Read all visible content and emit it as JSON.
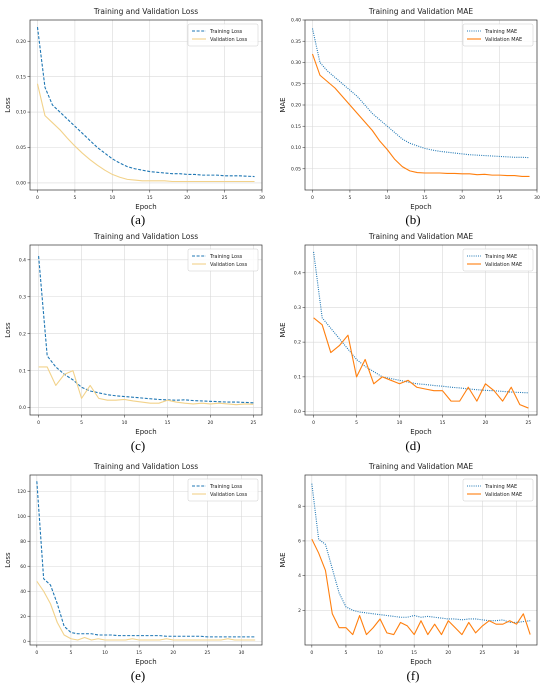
{
  "colors": {
    "training": "#1f77b4",
    "validation_loss": "#f2d28a",
    "validation_mae": "#ff7f0e",
    "grid": "#d9d9d9"
  },
  "chart_data": [
    {
      "type": "line",
      "title": "Training and Validation Loss",
      "xlabel": "Epoch",
      "ylabel": "Loss",
      "xlim": [
        -1,
        30
      ],
      "ylim": [
        -0.01,
        0.23
      ],
      "xticks": [
        0,
        5,
        10,
        15,
        20,
        25,
        30
      ],
      "yticks": [
        0.0,
        0.05,
        0.1,
        0.15,
        0.2
      ],
      "xticklabels": [
        "0",
        "5",
        "10",
        "15",
        "20",
        "25",
        "30"
      ],
      "yticklabels": [
        "0.00",
        "0.05",
        "0.10",
        "0.15",
        "0.20"
      ],
      "legend_position": "top-right",
      "grid": true,
      "series": [
        {
          "name": "Training Loss",
          "style": "dashed",
          "color": "#1f77b4",
          "x": [
            0,
            1,
            2,
            3,
            4,
            5,
            6,
            7,
            8,
            9,
            10,
            11,
            12,
            13,
            14,
            15,
            16,
            17,
            18,
            19,
            20,
            21,
            22,
            23,
            24,
            25,
            26,
            27,
            28,
            29
          ],
          "y": [
            0.22,
            0.135,
            0.11,
            0.1,
            0.09,
            0.08,
            0.07,
            0.06,
            0.05,
            0.042,
            0.034,
            0.028,
            0.023,
            0.02,
            0.018,
            0.016,
            0.015,
            0.014,
            0.013,
            0.013,
            0.012,
            0.012,
            0.011,
            0.011,
            0.011,
            0.01,
            0.01,
            0.01,
            0.0095,
            0.009
          ]
        },
        {
          "name": "Validation Loss",
          "style": "solid",
          "color": "#f2d28a",
          "x": [
            0,
            1,
            2,
            3,
            4,
            5,
            6,
            7,
            8,
            9,
            10,
            11,
            12,
            13,
            14,
            15,
            16,
            17,
            18,
            19,
            20,
            21,
            22,
            23,
            24,
            25,
            26,
            27,
            28,
            29
          ],
          "y": [
            0.14,
            0.095,
            0.085,
            0.075,
            0.063,
            0.052,
            0.042,
            0.033,
            0.025,
            0.018,
            0.012,
            0.008,
            0.005,
            0.004,
            0.003,
            0.003,
            0.003,
            0.003,
            0.002,
            0.002,
            0.002,
            0.002,
            0.002,
            0.002,
            0.002,
            0.002,
            0.002,
            0.002,
            0.002,
            0.002
          ]
        }
      ]
    },
    {
      "type": "line",
      "title": "Training and Validation MAE",
      "xlabel": "Epoch",
      "ylabel": "MAE",
      "xlim": [
        -1,
        30
      ],
      "ylim": [
        0.0,
        0.4
      ],
      "xticks": [
        0,
        5,
        10,
        15,
        20,
        25,
        30
      ],
      "yticks": [
        0.05,
        0.1,
        0.15,
        0.2,
        0.25,
        0.3,
        0.35,
        0.4
      ],
      "xticklabels": [
        "0",
        "5",
        "10",
        "15",
        "20",
        "25",
        "30"
      ],
      "yticklabels": [
        "0.05",
        "0.10",
        "0.15",
        "0.20",
        "0.25",
        "0.30",
        "0.35",
        "0.40"
      ],
      "legend_position": "top-right",
      "grid": true,
      "series": [
        {
          "name": "Training MAE",
          "style": "dotted",
          "color": "#1f77b4",
          "x": [
            0,
            1,
            2,
            3,
            4,
            5,
            6,
            7,
            8,
            9,
            10,
            11,
            12,
            13,
            14,
            15,
            16,
            17,
            18,
            19,
            20,
            21,
            22,
            23,
            24,
            25,
            26,
            27,
            28,
            29
          ],
          "y": [
            0.38,
            0.3,
            0.28,
            0.265,
            0.25,
            0.235,
            0.22,
            0.2,
            0.18,
            0.165,
            0.15,
            0.135,
            0.12,
            0.11,
            0.104,
            0.098,
            0.094,
            0.091,
            0.089,
            0.087,
            0.085,
            0.083,
            0.082,
            0.081,
            0.08,
            0.079,
            0.078,
            0.077,
            0.077,
            0.076
          ]
        },
        {
          "name": "Validation MAE",
          "style": "solid",
          "color": "#ff7f0e",
          "x": [
            0,
            1,
            2,
            3,
            4,
            5,
            6,
            7,
            8,
            9,
            10,
            11,
            12,
            13,
            14,
            15,
            16,
            17,
            18,
            19,
            20,
            21,
            22,
            23,
            24,
            25,
            26,
            27,
            28,
            29
          ],
          "y": [
            0.32,
            0.27,
            0.255,
            0.24,
            0.22,
            0.2,
            0.18,
            0.16,
            0.14,
            0.115,
            0.095,
            0.072,
            0.055,
            0.045,
            0.041,
            0.04,
            0.04,
            0.04,
            0.039,
            0.039,
            0.038,
            0.038,
            0.036,
            0.037,
            0.035,
            0.035,
            0.034,
            0.034,
            0.032,
            0.032
          ]
        }
      ]
    },
    {
      "type": "line",
      "title": "Training and Validation Loss",
      "xlabel": "Epoch",
      "ylabel": "Loss",
      "xlim": [
        -1,
        26
      ],
      "ylim": [
        -0.02,
        0.44
      ],
      "xticks": [
        0,
        5,
        10,
        15,
        20,
        25
      ],
      "yticks": [
        0.0,
        0.1,
        0.2,
        0.3,
        0.4
      ],
      "xticklabels": [
        "0",
        "5",
        "10",
        "15",
        "20",
        "25"
      ],
      "yticklabels": [
        "0.0",
        "0.1",
        "0.2",
        "0.3",
        "0.4"
      ],
      "legend_position": "top-right",
      "grid": true,
      "series": [
        {
          "name": "Training Loss",
          "style": "dashed",
          "color": "#1f77b4",
          "x": [
            0,
            1,
            2,
            3,
            4,
            5,
            6,
            7,
            8,
            9,
            10,
            11,
            12,
            13,
            14,
            15,
            16,
            17,
            18,
            19,
            20,
            21,
            22,
            23,
            24,
            25
          ],
          "y": [
            0.41,
            0.14,
            0.11,
            0.09,
            0.075,
            0.055,
            0.045,
            0.04,
            0.035,
            0.032,
            0.03,
            0.028,
            0.026,
            0.024,
            0.022,
            0.021,
            0.02,
            0.021,
            0.019,
            0.018,
            0.017,
            0.016,
            0.015,
            0.015,
            0.014,
            0.013
          ]
        },
        {
          "name": "Validation Loss",
          "style": "solid",
          "color": "#f2d28a",
          "x": [
            0,
            1,
            2,
            3,
            4,
            5,
            6,
            7,
            8,
            9,
            10,
            11,
            12,
            13,
            14,
            15,
            16,
            17,
            18,
            19,
            20,
            21,
            22,
            23,
            24,
            25
          ],
          "y": [
            0.11,
            0.11,
            0.06,
            0.09,
            0.1,
            0.025,
            0.06,
            0.025,
            0.02,
            0.02,
            0.022,
            0.018,
            0.015,
            0.012,
            0.012,
            0.02,
            0.015,
            0.012,
            0.01,
            0.012,
            0.01,
            0.012,
            0.01,
            0.008,
            0.01,
            0.009
          ]
        }
      ]
    },
    {
      "type": "line",
      "title": "Training and Validation MAE",
      "xlabel": "Epoch",
      "ylabel": "MAE",
      "xlim": [
        -1,
        26
      ],
      "ylim": [
        -0.01,
        0.48
      ],
      "xticks": [
        0,
        5,
        10,
        15,
        20,
        25
      ],
      "yticks": [
        0.0,
        0.1,
        0.2,
        0.3,
        0.4
      ],
      "xticklabels": [
        "0",
        "5",
        "10",
        "15",
        "20",
        "25"
      ],
      "yticklabels": [
        "0.0",
        "0.1",
        "0.2",
        "0.3",
        "0.4"
      ],
      "legend_position": "top-right",
      "grid": true,
      "series": [
        {
          "name": "Training MAE",
          "style": "dotted",
          "color": "#1f77b4",
          "x": [
            0,
            1,
            2,
            3,
            4,
            5,
            6,
            7,
            8,
            9,
            10,
            11,
            12,
            13,
            14,
            15,
            16,
            17,
            18,
            19,
            20,
            21,
            22,
            23,
            24,
            25
          ],
          "y": [
            0.46,
            0.27,
            0.24,
            0.21,
            0.18,
            0.15,
            0.13,
            0.115,
            0.1,
            0.095,
            0.09,
            0.085,
            0.08,
            0.078,
            0.075,
            0.073,
            0.07,
            0.068,
            0.065,
            0.063,
            0.061,
            0.06,
            0.058,
            0.056,
            0.055,
            0.054
          ]
        },
        {
          "name": "Validation MAE",
          "style": "solid",
          "color": "#ff7f0e",
          "x": [
            0,
            1,
            2,
            3,
            4,
            5,
            6,
            7,
            8,
            9,
            10,
            11,
            12,
            13,
            14,
            15,
            16,
            17,
            18,
            19,
            20,
            21,
            22,
            23,
            24,
            25
          ],
          "y": [
            0.27,
            0.25,
            0.17,
            0.19,
            0.22,
            0.1,
            0.15,
            0.08,
            0.1,
            0.09,
            0.08,
            0.09,
            0.07,
            0.065,
            0.06,
            0.06,
            0.03,
            0.03,
            0.07,
            0.03,
            0.08,
            0.06,
            0.03,
            0.07,
            0.02,
            0.01
          ]
        }
      ]
    },
    {
      "type": "line",
      "title": "Training and Validation Loss",
      "xlabel": "Epoch",
      "ylabel": "Loss",
      "xlim": [
        -1,
        33
      ],
      "ylim": [
        -3,
        133
      ],
      "xticks": [
        0,
        5,
        10,
        15,
        20,
        25,
        30
      ],
      "yticks": [
        0,
        20,
        40,
        60,
        80,
        100,
        120
      ],
      "xticklabels": [
        "0",
        "5",
        "10",
        "15",
        "20",
        "25",
        "30"
      ],
      "yticklabels": [
        "0",
        "20",
        "40",
        "60",
        "80",
        "100",
        "120"
      ],
      "legend_position": "top-right",
      "grid": true,
      "series": [
        {
          "name": "Training Loss",
          "style": "dashed",
          "color": "#1f77b4",
          "x": [
            0,
            1,
            2,
            3,
            4,
            5,
            6,
            7,
            8,
            9,
            10,
            11,
            12,
            13,
            14,
            15,
            16,
            17,
            18,
            19,
            20,
            21,
            22,
            23,
            24,
            25,
            26,
            27,
            28,
            29,
            30,
            31,
            32
          ],
          "y": [
            128,
            50,
            45,
            30,
            12,
            7,
            6,
            6,
            6,
            5,
            5,
            5,
            4.5,
            4.5,
            4.5,
            4.5,
            4.5,
            4.5,
            4.5,
            4,
            4,
            4,
            4,
            4,
            4,
            3.5,
            3.5,
            3.5,
            3.5,
            3.5,
            3.5,
            3.5,
            3.5
          ]
        },
        {
          "name": "Validation Loss",
          "style": "solid",
          "color": "#f2d28a",
          "x": [
            0,
            1,
            2,
            3,
            4,
            5,
            6,
            7,
            8,
            9,
            10,
            11,
            12,
            13,
            14,
            15,
            16,
            17,
            18,
            19,
            20,
            21,
            22,
            23,
            24,
            25,
            26,
            27,
            28,
            29,
            30,
            31,
            32
          ],
          "y": [
            48,
            40,
            30,
            15,
            5,
            2,
            1,
            3,
            1,
            2,
            1,
            1,
            1,
            1,
            2,
            1,
            1,
            1,
            1,
            2,
            1,
            1,
            1,
            1,
            1,
            1,
            1,
            1,
            2,
            1,
            1,
            1,
            1
          ]
        }
      ]
    },
    {
      "type": "line",
      "title": "Training and Validation MAE",
      "xlabel": "Epoch",
      "ylabel": "MAE",
      "xlim": [
        -1,
        33
      ],
      "ylim": [
        0.0,
        9.8
      ],
      "xticks": [
        0,
        5,
        10,
        15,
        20,
        25,
        30
      ],
      "yticks": [
        2,
        4,
        6,
        8
      ],
      "xticklabels": [
        "0",
        "5",
        "10",
        "15",
        "20",
        "25",
        "30"
      ],
      "yticklabels": [
        "2",
        "4",
        "6",
        "8"
      ],
      "legend_position": "top-right",
      "grid": true,
      "series": [
        {
          "name": "Training MAE",
          "style": "dotted",
          "color": "#1f77b4",
          "x": [
            0,
            1,
            2,
            3,
            4,
            5,
            6,
            7,
            8,
            9,
            10,
            11,
            12,
            13,
            14,
            15,
            16,
            17,
            18,
            19,
            20,
            21,
            22,
            23,
            24,
            25,
            26,
            27,
            28,
            29,
            30,
            31,
            32
          ],
          "y": [
            9.3,
            6.1,
            5.8,
            4.4,
            3.0,
            2.2,
            2.0,
            1.9,
            1.85,
            1.8,
            1.75,
            1.7,
            1.65,
            1.6,
            1.6,
            1.7,
            1.6,
            1.65,
            1.6,
            1.55,
            1.5,
            1.5,
            1.45,
            1.5,
            1.5,
            1.45,
            1.4,
            1.4,
            1.45,
            1.3,
            1.3,
            1.35,
            1.4
          ]
        },
        {
          "name": "Validation MAE",
          "style": "solid",
          "color": "#ff7f0e",
          "x": [
            0,
            1,
            2,
            3,
            4,
            5,
            6,
            7,
            8,
            9,
            10,
            11,
            12,
            13,
            14,
            15,
            16,
            17,
            18,
            19,
            20,
            21,
            22,
            23,
            24,
            25,
            26,
            27,
            28,
            29,
            30,
            31,
            32
          ],
          "y": [
            6.1,
            5.3,
            4.3,
            1.8,
            1.0,
            1.0,
            0.6,
            1.7,
            0.6,
            1.0,
            1.5,
            0.7,
            0.6,
            1.3,
            1.1,
            0.6,
            1.4,
            0.6,
            1.2,
            0.6,
            1.4,
            1.0,
            0.6,
            1.3,
            0.7,
            1.1,
            1.4,
            1.2,
            1.2,
            1.4,
            1.2,
            1.8,
            0.6
          ]
        }
      ]
    }
  ],
  "captions": [
    "(a)",
    "(b)",
    "(c)",
    "(d)",
    "(e)",
    "(f)"
  ]
}
